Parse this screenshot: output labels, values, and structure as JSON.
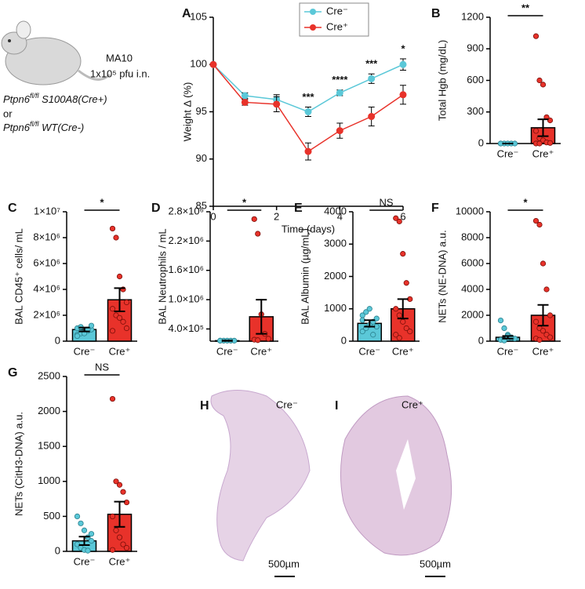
{
  "schematic": {
    "virus": "MA10",
    "dose": "1x10⁵ pfu i.n.",
    "line1": {
      "gene": "Ptpn6",
      "sup": "fl/fl",
      "rest": " S100A8(Cre+)"
    },
    "or": "or",
    "line2": {
      "gene": "Ptpn6",
      "sup": "fl/fl",
      "rest": " WT(Cre-)"
    }
  },
  "chart_data": [
    {
      "type": "line",
      "panel": "A",
      "ylabel": "Weight Δ (%)",
      "xlabel": "Time (days)",
      "x": [
        0,
        1,
        2,
        3,
        4,
        5,
        6
      ],
      "series": [
        {
          "name": "Cre⁻",
          "color": "#5bc8d8",
          "values": [
            100,
            96.7,
            96.3,
            95,
            97,
            98.5,
            100
          ],
          "errors": [
            0,
            0.3,
            0.5,
            0.5,
            0.3,
            0.5,
            0.6
          ]
        },
        {
          "name": "Cre⁺",
          "color": "#e8322a",
          "values": [
            100,
            96,
            95.8,
            90.8,
            93,
            94.5,
            96.8
          ],
          "errors": [
            0,
            0.3,
            0.8,
            0.9,
            0.8,
            1,
            1
          ]
        }
      ],
      "xlim": [
        0,
        6
      ],
      "xticks": [
        0,
        2,
        4,
        6
      ],
      "ylim": [
        85,
        105
      ],
      "yticks": [
        85,
        90,
        95,
        100,
        105
      ],
      "annotations": [
        {
          "x": 3,
          "label": "***"
        },
        {
          "x": 4,
          "label": "****"
        },
        {
          "x": 5,
          "label": "***"
        },
        {
          "x": 6,
          "label": "*"
        }
      ],
      "legend": "top-left"
    },
    {
      "type": "bar",
      "panel": "B",
      "ylabel": "Total Hgb (mg/dL)",
      "categories": [
        "Cre⁻",
        "Cre⁺"
      ],
      "colors": [
        "#5bc8d8",
        "#e8322a"
      ],
      "values": [
        0,
        150
      ],
      "errors": [
        0,
        80
      ],
      "points": [
        [
          0,
          0,
          0,
          0,
          0,
          0
        ],
        [
          1020,
          600,
          560,
          250,
          220,
          120,
          50,
          30,
          10,
          5,
          0,
          0
        ]
      ],
      "ylim": [
        0,
        1200
      ],
      "yticks": [
        0,
        300,
        600,
        900,
        1200
      ],
      "significance": "**"
    },
    {
      "type": "bar",
      "panel": "C",
      "ylabel": "BAL CD45⁺ cells/ mL",
      "categories": [
        "Cre⁻",
        "Cre⁺"
      ],
      "colors": [
        "#5bc8d8",
        "#e8322a"
      ],
      "values": [
        900000,
        3200000
      ],
      "errors": [
        150000,
        900000
      ],
      "points": [
        [
          500000,
          600000,
          700000,
          800000,
          900000,
          1000000,
          1100000,
          600000,
          900000,
          1200000,
          400000
        ],
        [
          8700000,
          8000000,
          5000000,
          4000000,
          3000000,
          2500000,
          2000000,
          1800000,
          1500000,
          1000000,
          800000
        ]
      ],
      "ylim": [
        0,
        10000000
      ],
      "yticks": [
        0,
        {
          "value": 2000000,
          "label": "2×10⁶"
        },
        {
          "value": 4000000,
          "label": "4×10⁶"
        },
        {
          "value": 6000000,
          "label": "6×10⁶"
        },
        {
          "value": 8000000,
          "label": "8×10⁶"
        },
        {
          "value": 10000000,
          "label": "1×10⁷"
        }
      ],
      "significance": "*"
    },
    {
      "type": "bar",
      "panel": "D",
      "ylabel": "BAL Neutrophils / mL",
      "categories": [
        "Cre⁻",
        "Cre⁺"
      ],
      "colors": [
        "#5bc8d8",
        "#e8322a"
      ],
      "values": [
        160000,
        650000
      ],
      "errors": [
        5000,
        350000
      ],
      "points": [
        [
          160000,
          160000,
          160000,
          160000,
          160000,
          160000
        ],
        [
          2650000,
          2350000,
          700000,
          300000,
          200000,
          180000,
          170000
        ]
      ],
      "ylim": [
        150000,
        2800000
      ],
      "yticks": [
        {
          "value": 400000,
          "label": "4.0×10⁵"
        },
        {
          "value": 1000000,
          "label": "1.0×10⁶"
        },
        {
          "value": 1600000,
          "label": "1.6×10⁶"
        },
        {
          "value": 2200000,
          "label": "2.2×10⁶"
        },
        {
          "value": 2800000,
          "label": "2.8×10⁶"
        }
      ],
      "significance": "*"
    },
    {
      "type": "bar",
      "panel": "E",
      "ylabel": "BAL Albumin (µg/mL)",
      "categories": [
        "Cre⁻",
        "Cre⁺"
      ],
      "colors": [
        "#5bc8d8",
        "#e8322a"
      ],
      "values": [
        550,
        1000
      ],
      "errors": [
        100,
        300
      ],
      "points": [
        [
          300,
          400,
          500,
          600,
          700,
          800,
          900,
          1000,
          200,
          450,
          650
        ],
        [
          3800,
          3700,
          2700,
          1800,
          1300,
          1000,
          800,
          600,
          400,
          300,
          200,
          100
        ]
      ],
      "ylim": [
        0,
        4000
      ],
      "yticks": [
        0,
        1000,
        2000,
        3000,
        4000
      ],
      "significance": "NS"
    },
    {
      "type": "bar",
      "panel": "F",
      "ylabel": "NETs (NE-DNA) a.u.",
      "categories": [
        "Cre⁻",
        "Cre⁺"
      ],
      "colors": [
        "#5bc8d8",
        "#e8322a"
      ],
      "values": [
        300,
        2000
      ],
      "errors": [
        100,
        800
      ],
      "points": [
        [
          1600,
          1000,
          500,
          300,
          200,
          100,
          50,
          400,
          250
        ],
        [
          9300,
          9000,
          6000,
          4000,
          2000,
          1500,
          1000,
          800,
          500,
          300,
          200,
          100
        ]
      ],
      "ylim": [
        0,
        10000
      ],
      "yticks": [
        0,
        2000,
        4000,
        6000,
        8000,
        10000
      ],
      "significance": "*"
    },
    {
      "type": "bar",
      "panel": "G",
      "ylabel": "NETs (CitH3-DNA) a.u.",
      "categories": [
        "Cre⁻",
        "Cre⁺"
      ],
      "colors": [
        "#5bc8d8",
        "#e8322a"
      ],
      "values": [
        150,
        530
      ],
      "errors": [
        60,
        180
      ],
      "points": [
        [
          500,
          400,
          300,
          200,
          150,
          100,
          50,
          20,
          10,
          250
        ],
        [
          2180,
          1000,
          950,
          850,
          700,
          500,
          300,
          200,
          100,
          50,
          20
        ]
      ],
      "ylim": [
        0,
        2500
      ],
      "yticks": [
        0,
        500,
        1000,
        1500,
        2000,
        2500
      ],
      "significance": "NS"
    }
  ],
  "images": [
    {
      "panel": "H",
      "label": "Cre⁻",
      "scale": "500µm"
    },
    {
      "panel": "I",
      "label": "Cre⁺",
      "scale": "500µm"
    }
  ]
}
